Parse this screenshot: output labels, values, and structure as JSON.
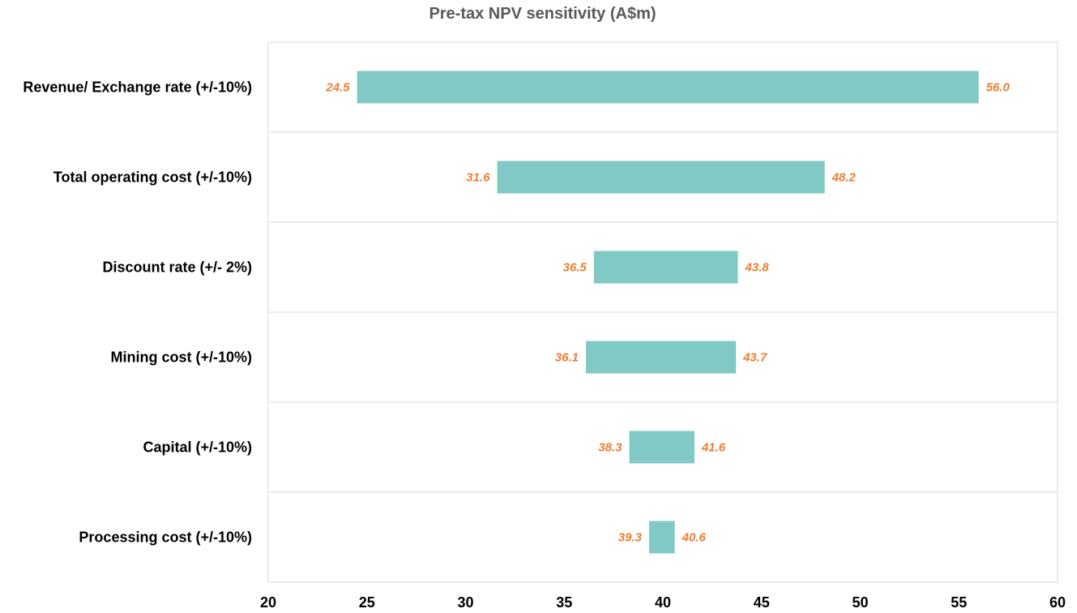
{
  "chart_data": {
    "type": "bar",
    "subtype": "tornado",
    "title": "Pre-tax NPV sensitivity (A$m)",
    "xlabel": "",
    "ylabel": "",
    "xlim": [
      20,
      60
    ],
    "xticks": [
      20,
      25,
      30,
      35,
      40,
      45,
      50,
      55,
      60
    ],
    "grid": "horizontal separators between categories",
    "legend": "none",
    "categories": [
      "Revenue/ Exchange rate (+/-10%)",
      "Total operating cost (+/-10%)",
      "Discount rate (+/- 2%)",
      "Mining cost (+/-10%)",
      "Capital (+/-10%)",
      "Processing cost (+/-10%)"
    ],
    "low_values": [
      24.5,
      31.6,
      36.5,
      36.1,
      38.3,
      39.3
    ],
    "high_values": [
      56.0,
      48.2,
      43.8,
      43.7,
      41.6,
      40.6
    ],
    "low_labels": [
      "24.5",
      "31.6",
      "36.5",
      "36.1",
      "38.3",
      "39.3"
    ],
    "high_labels": [
      "56.0",
      "48.2",
      "43.8",
      "43.7",
      "41.6",
      "40.6"
    ],
    "colors": {
      "bar": "#80c9c4",
      "value_label": "#ed7d31",
      "grid": "#d9d9d9",
      "title": "#595959"
    }
  }
}
